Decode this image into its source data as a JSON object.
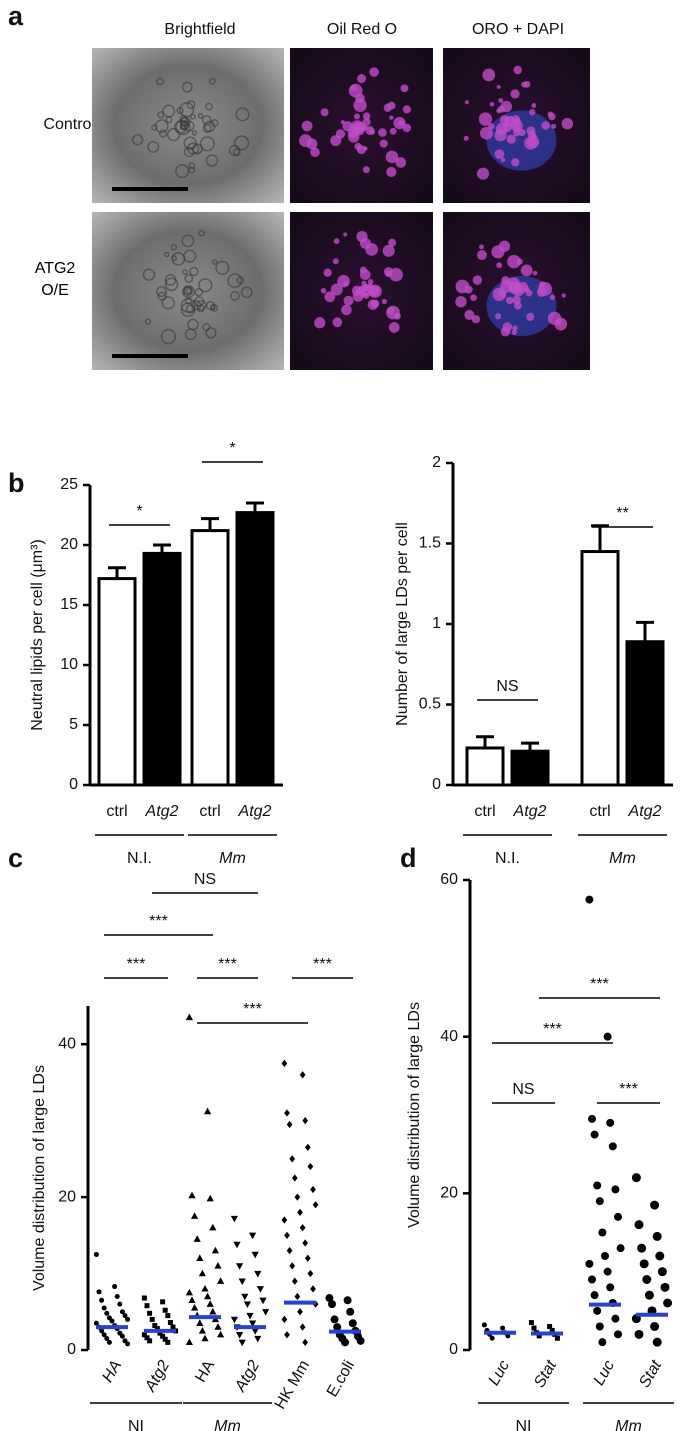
{
  "panel_a": {
    "label": "a",
    "column_headers": [
      "Brightfield",
      "Oil Red O",
      "ORO + DAPI"
    ],
    "row_labels": [
      "Control",
      "ATG2 O/E"
    ]
  },
  "chart_data": [
    {
      "type": "bar",
      "label": "b",
      "ylabel": "Neutral lipids per cell (μm³)",
      "categories": [
        "ctrl",
        "Atg2",
        "ctrl",
        "Atg2"
      ],
      "italic": [
        false,
        true,
        false,
        true
      ],
      "values": [
        17.2,
        19.3,
        21.2,
        22.7
      ],
      "errors": [
        0.9,
        0.7,
        1.0,
        0.8
      ],
      "colors": [
        "#ffffff",
        "#000000",
        "#ffffff",
        "#000000"
      ],
      "ylim": [
        0,
        25
      ],
      "yticks": [
        0,
        5,
        10,
        15,
        20,
        25
      ],
      "groups": [
        "N.I.",
        "Mm"
      ],
      "annotations": [
        "*",
        "*"
      ]
    },
    {
      "type": "bar",
      "ylabel": "Number of large LDs per cell",
      "categories": [
        "ctrl",
        "Atg2",
        "ctrl",
        "Atg2"
      ],
      "italic": [
        false,
        true,
        false,
        true
      ],
      "values": [
        0.23,
        0.21,
        1.45,
        0.89
      ],
      "errors": [
        0.07,
        0.05,
        0.16,
        0.12
      ],
      "colors": [
        "#ffffff",
        "#000000",
        "#ffffff",
        "#000000"
      ],
      "ylim": [
        0,
        2
      ],
      "yticks": [
        0,
        0.5,
        1,
        1.5,
        2
      ],
      "groups": [
        "N.I.",
        "Mm"
      ],
      "annotations": [
        "NS",
        "**"
      ]
    },
    {
      "type": "dot",
      "label": "c",
      "ylabel": "Volume distribution of large LDs",
      "categories": [
        "HA",
        "Atg2",
        "HA",
        "Atg2",
        "HK Mm",
        "E.coli"
      ],
      "italic": [
        true,
        true,
        false,
        true,
        false,
        false
      ],
      "markers": [
        "circle",
        "square",
        "triangle",
        "triangle-down",
        "diamond",
        "circle"
      ],
      "median_color": "#2a3fd9",
      "medians": [
        3.0,
        2.5,
        4.3,
        3.0,
        6.2,
        2.4
      ],
      "points": [
        [
          12.5,
          8.3,
          7.6,
          7.0,
          6.5,
          6.0,
          5.5,
          5.0,
          4.8,
          4.5,
          4.2,
          4.0,
          3.8,
          3.5,
          3.2,
          3.0,
          2.8,
          2.5,
          2.2,
          2.0,
          1.8,
          1.5,
          1.2,
          1.0,
          0.8
        ],
        [
          6.8,
          6.3,
          5.8,
          5.2,
          4.8,
          4.5,
          4.0,
          3.6,
          3.2,
          3.0,
          2.8,
          2.5,
          2.2,
          2.0,
          1.8,
          1.6,
          1.4,
          1.2,
          1.0
        ],
        [
          43.5,
          31.2,
          20.2,
          19.8,
          17.5,
          16.0,
          14.5,
          13.0,
          12.0,
          11.0,
          10.0,
          9.0,
          8.0,
          7.5,
          7.0,
          6.5,
          6.0,
          5.5,
          5.0,
          4.5,
          4.0,
          3.5,
          3.0,
          2.5,
          2.0,
          1.5,
          1.0
        ],
        [
          17.2,
          15.0,
          13.8,
          12.5,
          11.0,
          10.0,
          9.0,
          8.0,
          7.0,
          6.5,
          6.0,
          5.0,
          4.5,
          4.0,
          3.5,
          3.0,
          2.5,
          2.0,
          1.5,
          1.0
        ],
        [
          37.5,
          36.0,
          31.0,
          30.0,
          29.5,
          26.5,
          25.0,
          24.0,
          22.5,
          21.0,
          20.0,
          19.0,
          18.0,
          17.0,
          16.0,
          15.0,
          14.0,
          13.0,
          12.0,
          11.0,
          10.0,
          9.0,
          8.0,
          7.0,
          6.0,
          5.0,
          4.0,
          3.0,
          2.0,
          1.0
        ],
        [
          6.8,
          6.5,
          6.0,
          5.0,
          4.0,
          3.5,
          3.0,
          2.5,
          2.0,
          1.8,
          1.5,
          1.2,
          1.0
        ]
      ],
      "ylim": [
        0,
        45
      ],
      "yticks": [
        0,
        20,
        40
      ],
      "groups": [
        "NI",
        "Mm"
      ],
      "annotations": [
        "NS",
        "***",
        "***",
        "***",
        "***",
        "***"
      ]
    },
    {
      "type": "dot",
      "label": "d",
      "ylabel": "Volume distribution of large LDs",
      "categories": [
        "Luc",
        "Stat",
        "Luc",
        "Stat"
      ],
      "italic": [
        true,
        true,
        true,
        true
      ],
      "markers": [
        "circle",
        "square",
        "circle",
        "circle"
      ],
      "median_color": "#2a3fd9",
      "medians": [
        2.2,
        2.1,
        5.8,
        4.5
      ],
      "points": [
        [
          3.2,
          2.8,
          2.5,
          2.2,
          2.0,
          1.8,
          1.5
        ],
        [
          3.5,
          3.0,
          2.8,
          2.5,
          2.2,
          2.0,
          1.8,
          1.5
        ],
        [
          57.5,
          40.0,
          29.5,
          29.0,
          27.5,
          26.0,
          21.0,
          20.5,
          19.0,
          17.0,
          15.0,
          13.0,
          12.0,
          11.0,
          10.0,
          9.0,
          8.0,
          7.0,
          6.0,
          5.0,
          4.0,
          3.0,
          2.0,
          1.0
        ],
        [
          22.0,
          18.5,
          16.0,
          14.5,
          13.0,
          12.0,
          11.0,
          10.0,
          9.0,
          8.0,
          7.0,
          6.0,
          5.0,
          4.0,
          3.0,
          2.0,
          1.0
        ]
      ],
      "ylim": [
        0,
        60
      ],
      "yticks": [
        0,
        20,
        40,
        60
      ],
      "groups": [
        "NI",
        "Mm"
      ],
      "annotations": [
        "***",
        "***",
        "NS",
        "***"
      ]
    }
  ]
}
